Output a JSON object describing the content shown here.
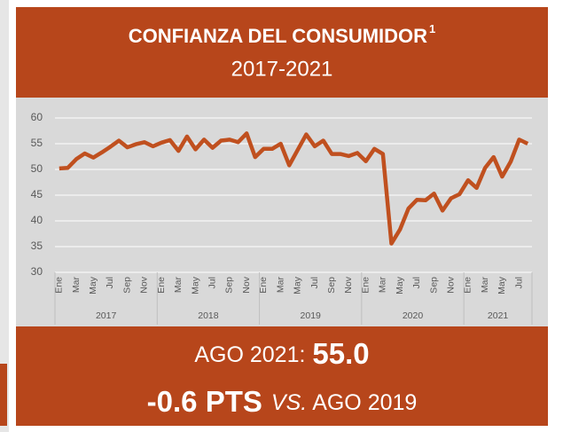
{
  "chart_data": {
    "type": "line",
    "title": "CONFIANZA DEL CONSUMIDOR",
    "title_superscript": "1",
    "subtitle": "2017-2021",
    "categories": [
      "Ene",
      null,
      "Mar",
      null,
      "May",
      null,
      "Jul",
      null,
      "Sep",
      null,
      "Nov",
      null,
      "Ene",
      null,
      "Mar",
      null,
      "May",
      null,
      "Jul",
      null,
      "Sep",
      null,
      "Nov",
      null,
      "Ene",
      null,
      "Mar",
      null,
      "May",
      null,
      "Jul",
      null,
      "Sep",
      null,
      "Nov",
      null,
      "Ene",
      null,
      "Mar",
      null,
      "May",
      null,
      "Jul",
      null,
      "Sep",
      null,
      "Nov",
      null,
      "Ene",
      null,
      "Mar",
      null,
      "May",
      null,
      "Jul",
      null
    ],
    "groups": [
      "2017",
      "2018",
      "2019",
      "2020",
      "2021"
    ],
    "values": [
      50.2,
      50.3,
      52.0,
      53.1,
      52.3,
      53.3,
      54.4,
      55.6,
      54.3,
      54.9,
      55.3,
      54.5,
      55.2,
      55.7,
      53.6,
      56.4,
      53.9,
      55.8,
      54.2,
      55.6,
      55.8,
      55.3,
      57.0,
      52.4,
      54.0,
      54.0,
      55.0,
      50.8,
      53.8,
      56.8,
      54.5,
      55.6,
      53.0,
      53.0,
      52.6,
      53.2,
      51.6,
      54.0,
      53.0,
      35.6,
      38.3,
      42.4,
      44.1,
      44.0,
      45.3,
      42.0,
      44.4,
      45.2,
      47.9,
      46.4,
      50.3,
      52.4,
      48.6,
      51.5,
      55.8,
      55.0
    ],
    "color": "#c0501f",
    "ylim": [
      30,
      60
    ],
    "yticks": [
      30,
      35,
      40,
      45,
      50,
      55,
      60
    ],
    "grid": true
  },
  "summary": {
    "label": "AGO 2021:",
    "value": "55.0",
    "change": "-0.6 PTS",
    "vs": "VS.",
    "reference": "AGO 2019"
  }
}
